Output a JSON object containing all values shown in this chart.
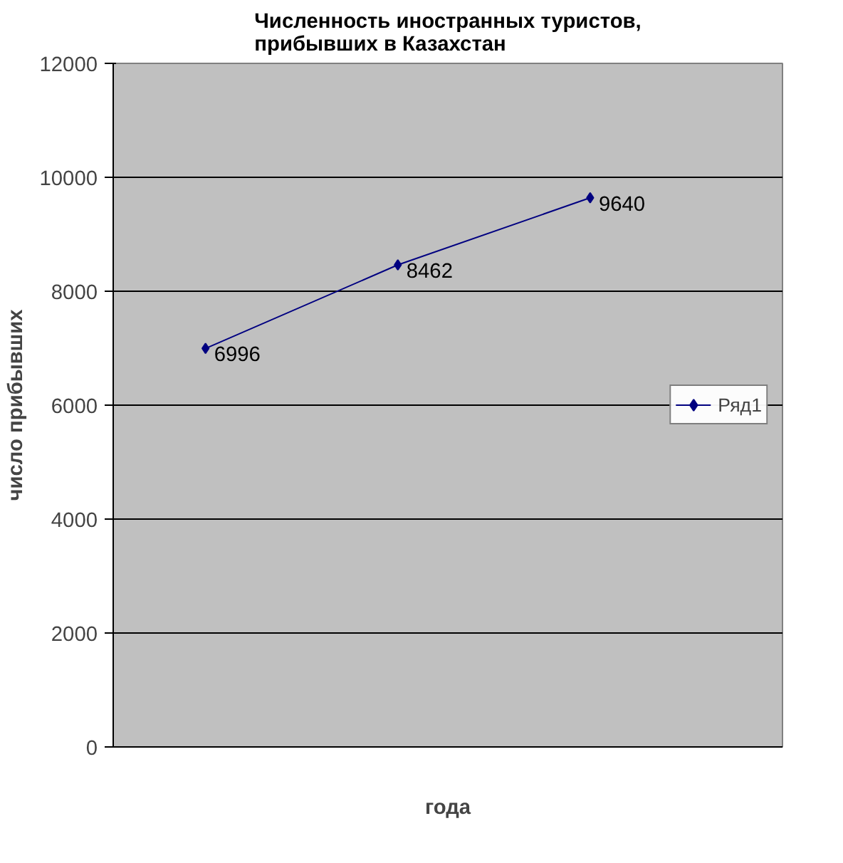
{
  "chart_data": {
    "type": "line",
    "title": "Численность иностранных туристов,\nприбывших в Казахстан",
    "xlabel": "года",
    "ylabel": "число прибывших",
    "categories": [
      null,
      null,
      null
    ],
    "series": [
      {
        "name": "Ряд1",
        "color": "#000080",
        "values": [
          6996,
          8462,
          9640
        ]
      }
    ],
    "ylim": [
      0,
      12000
    ],
    "yticks": [
      0,
      2000,
      4000,
      6000,
      8000,
      10000,
      12000
    ],
    "grid": "y",
    "legend": "right",
    "marker": "diamond",
    "data_labels": true
  }
}
